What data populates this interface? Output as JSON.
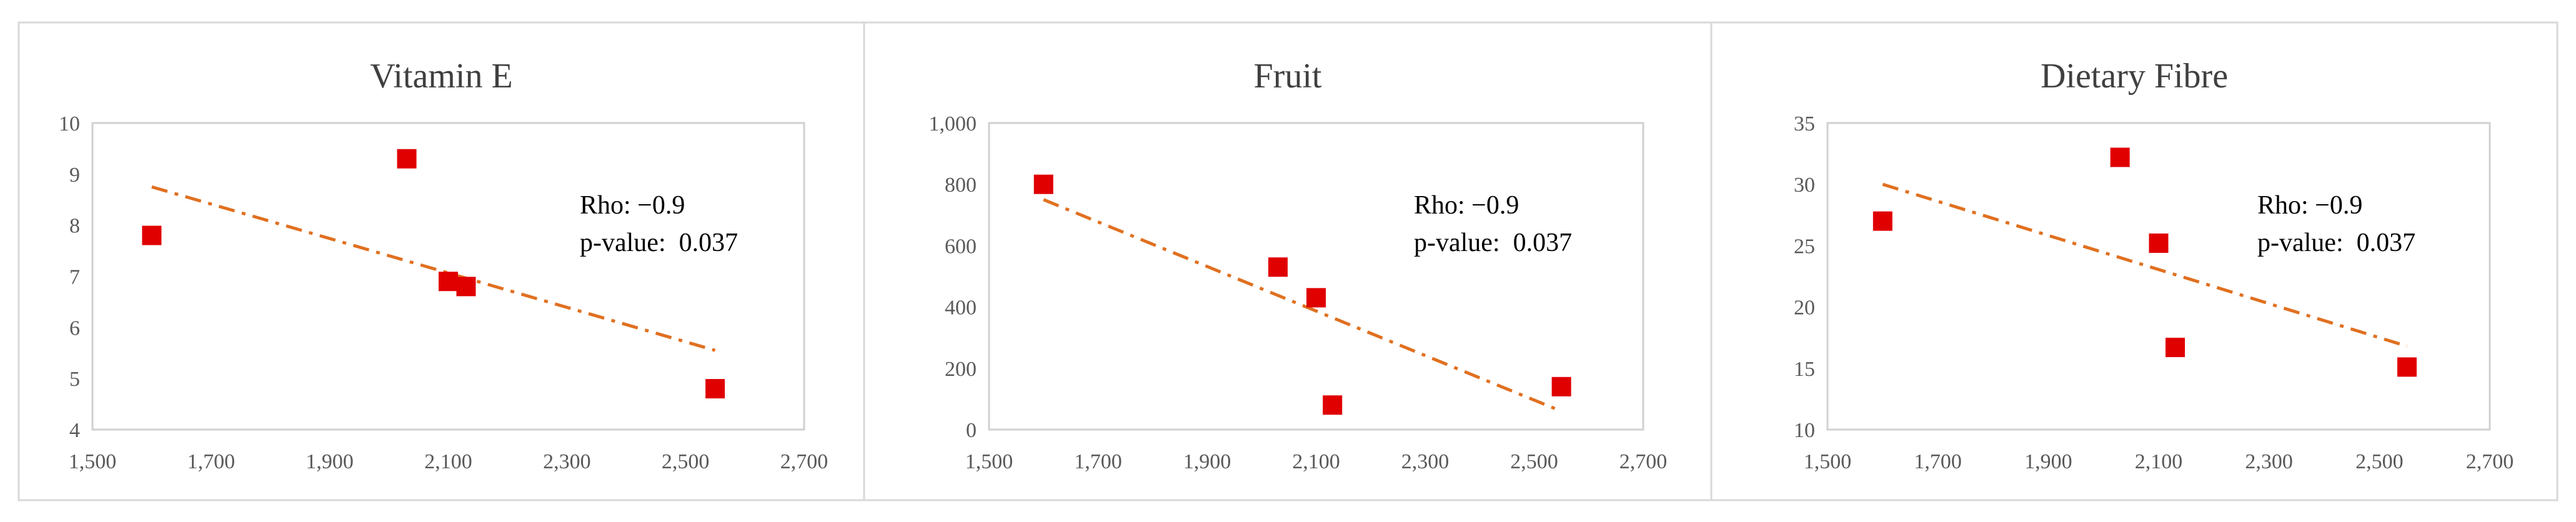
{
  "colors": {
    "marker": "#e00000",
    "trendline": "#e07020",
    "panel_border": "#d9d9d9",
    "plot_border": "#d0d0d0",
    "text": "#595959",
    "title": "#404040",
    "annotation": "#000000",
    "background": "#ffffff"
  },
  "chart_data": [
    {
      "type": "scatter",
      "title": "Vitamin E",
      "xlim": [
        1500,
        2700
      ],
      "ylim": [
        4,
        10
      ],
      "x_ticks": [
        "1,500",
        "1,700",
        "1,900",
        "2,100",
        "2,300",
        "2,500",
        "2,700"
      ],
      "y_ticks": [
        "4",
        "5",
        "6",
        "7",
        "8",
        "9",
        "10"
      ],
      "points": [
        {
          "x": 1600,
          "y": 7.8
        },
        {
          "x": 2030,
          "y": 9.3
        },
        {
          "x": 2100,
          "y": 6.9
        },
        {
          "x": 2130,
          "y": 6.8
        },
        {
          "x": 2550,
          "y": 4.8
        }
      ],
      "trendline": {
        "from": [
          1600,
          8.75
        ],
        "to": [
          2550,
          5.55
        ],
        "style": "dash-dot"
      },
      "annotation": {
        "rho": "Rho: −0.9",
        "p_value": "p-value:  0.037"
      },
      "grid": false
    },
    {
      "type": "scatter",
      "title": "Fruit",
      "xlim": [
        1500,
        2700
      ],
      "ylim": [
        0,
        1000
      ],
      "x_ticks": [
        "1,500",
        "1,700",
        "1,900",
        "2,100",
        "2,300",
        "2,500",
        "2,700"
      ],
      "y_ticks": [
        "0",
        "200",
        "400",
        "600",
        "800",
        "1,000"
      ],
      "points": [
        {
          "x": 1600,
          "y": 800
        },
        {
          "x": 2030,
          "y": 530
        },
        {
          "x": 2100,
          "y": 430
        },
        {
          "x": 2130,
          "y": 80
        },
        {
          "x": 2550,
          "y": 140
        }
      ],
      "trendline": {
        "from": [
          1600,
          750
        ],
        "to": [
          2550,
          60
        ],
        "style": "dash-dot"
      },
      "annotation": {
        "rho": "Rho: −0.9",
        "p_value": "p-value:  0.037"
      },
      "grid": false
    },
    {
      "type": "scatter",
      "title": "Dietary Fibre",
      "xlim": [
        1500,
        2700
      ],
      "ylim": [
        10,
        35
      ],
      "x_ticks": [
        "1,500",
        "1,700",
        "1,900",
        "2,100",
        "2,300",
        "2,500",
        "2,700"
      ],
      "y_ticks": [
        "10",
        "15",
        "20",
        "25",
        "30",
        "35"
      ],
      "points": [
        {
          "x": 1600,
          "y": 27
        },
        {
          "x": 2030,
          "y": 32.2
        },
        {
          "x": 2100,
          "y": 25.2
        },
        {
          "x": 2130,
          "y": 16.7
        },
        {
          "x": 2550,
          "y": 15.1
        }
      ],
      "trendline": {
        "from": [
          1600,
          30
        ],
        "to": [
          2550,
          16.8
        ],
        "style": "dash-dot"
      },
      "annotation": {
        "rho": "Rho: −0.9",
        "p_value": "p-value:  0.037"
      },
      "grid": false
    }
  ]
}
